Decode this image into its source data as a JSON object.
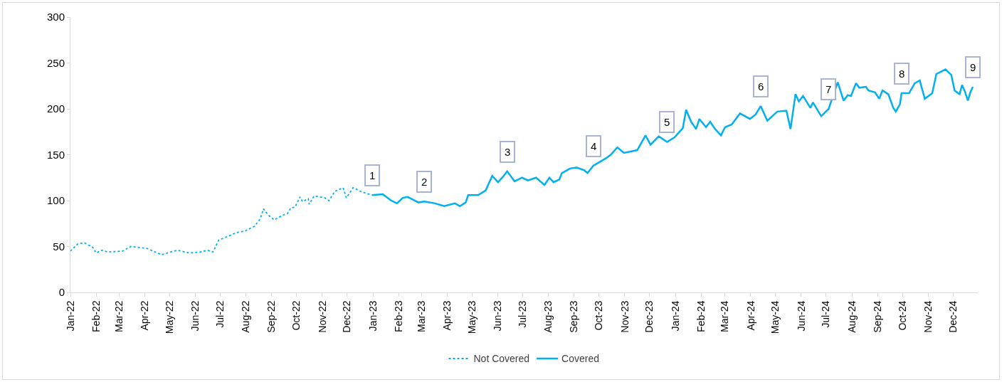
{
  "chart_data": {
    "type": "line",
    "legend": "bottom",
    "grid": false,
    "marker": "none",
    "xlim": [
      "2022-01-01",
      "2024-12-31"
    ],
    "ylim": [
      0,
      300
    ],
    "yticks": [
      0,
      50,
      100,
      150,
      200,
      250,
      300
    ],
    "xticks": [
      {
        "value": "2022-01",
        "label": "Jan-22"
      },
      {
        "value": "2022-02",
        "label": "Feb-22"
      },
      {
        "value": "2022-03",
        "label": "Mar-22"
      },
      {
        "value": "2022-04",
        "label": "Apr-22"
      },
      {
        "value": "2022-05",
        "label": "May-22"
      },
      {
        "value": "2022-06",
        "label": "Jun-22"
      },
      {
        "value": "2022-07",
        "label": "Jul-22"
      },
      {
        "value": "2022-08",
        "label": "Aug-22"
      },
      {
        "value": "2022-09",
        "label": "Sep-22"
      },
      {
        "value": "2022-10",
        "label": "Oct-22"
      },
      {
        "value": "2022-11",
        "label": "Nov-22"
      },
      {
        "value": "2022-12",
        "label": "Dec-22"
      },
      {
        "value": "2023-01",
        "label": "Jan-23"
      },
      {
        "value": "2023-02",
        "label": "Feb-23"
      },
      {
        "value": "2023-03",
        "label": "Mar-23"
      },
      {
        "value": "2023-04",
        "label": "Apr-23"
      },
      {
        "value": "2023-05",
        "label": "May-23"
      },
      {
        "value": "2023-06",
        "label": "Jun-23"
      },
      {
        "value": "2023-07",
        "label": "Jul-23"
      },
      {
        "value": "2023-08",
        "label": "Aug-23"
      },
      {
        "value": "2023-09",
        "label": "Sep-23"
      },
      {
        "value": "2023-10",
        "label": "Oct-23"
      },
      {
        "value": "2023-11",
        "label": "Nov-23"
      },
      {
        "value": "2023-12",
        "label": "Dec-23"
      },
      {
        "value": "2024-01",
        "label": "Jan-24"
      },
      {
        "value": "2024-02",
        "label": "Feb-24"
      },
      {
        "value": "2024-03",
        "label": "Mar-24"
      },
      {
        "value": "2024-04",
        "label": "Apr-24"
      },
      {
        "value": "2024-05",
        "label": "May-24"
      },
      {
        "value": "2024-06",
        "label": "Jun-24"
      },
      {
        "value": "2024-07",
        "label": "Jul-24"
      },
      {
        "value": "2024-08",
        "label": "Aug-24"
      },
      {
        "value": "2024-09",
        "label": "Sep-24"
      },
      {
        "value": "2024-10",
        "label": "Oct-24"
      },
      {
        "value": "2024-11",
        "label": "Nov-24"
      },
      {
        "value": "2024-12",
        "label": "Dec-24"
      }
    ],
    "series": [
      {
        "name": "Not Covered",
        "color": "#00b0f0",
        "line_style": "dotted",
        "x": [
          "2022-01-01",
          "2022-01-10",
          "2022-01-18",
          "2022-01-28",
          "2022-02-01",
          "2022-02-08",
          "2022-02-15",
          "2022-03-05",
          "2022-03-15",
          "2022-04-03",
          "2022-04-21",
          "2022-04-28",
          "2022-05-10",
          "2022-05-24",
          "2022-06-07",
          "2022-06-15",
          "2022-06-22",
          "2022-06-29",
          "2022-07-10",
          "2022-07-20",
          "2022-07-31",
          "2022-08-11",
          "2022-08-18",
          "2022-08-22",
          "2022-08-28",
          "2022-09-04",
          "2022-09-14",
          "2022-09-20",
          "2022-09-24",
          "2022-09-29",
          "2022-10-05",
          "2022-10-08",
          "2022-10-15",
          "2022-10-16",
          "2022-10-22",
          "2022-11-04",
          "2022-11-09",
          "2022-11-16",
          "2022-11-26",
          "2022-11-30",
          "2022-12-08",
          "2022-12-20",
          "2022-12-31"
        ],
        "values": [
          45,
          53,
          54,
          49,
          43,
          46,
          44,
          45,
          50,
          48,
          41,
          43,
          46,
          43,
          44,
          46,
          44,
          57,
          61,
          65,
          67,
          72,
          80,
          91,
          84,
          79,
          84,
          86,
          92,
          93,
          104,
          99,
          102,
          96,
          105,
          103,
          100,
          110,
          114,
          103,
          114,
          109,
          106
        ]
      },
      {
        "name": "Covered",
        "color": "#00b0f0",
        "line_style": "solid",
        "x": [
          "2022-12-31",
          "2023-01-13",
          "2023-01-23",
          "2023-01-30",
          "2023-02-06",
          "2023-02-12",
          "2023-02-25",
          "2023-03-04",
          "2023-03-17",
          "2023-03-28",
          "2023-04-10",
          "2023-04-16",
          "2023-04-23",
          "2023-04-26",
          "2023-05-08",
          "2023-05-17",
          "2023-05-25",
          "2023-06-01",
          "2023-06-07",
          "2023-06-12",
          "2023-06-21",
          "2023-06-30",
          "2023-07-07",
          "2023-07-17",
          "2023-07-27",
          "2023-08-02",
          "2023-08-07",
          "2023-08-14",
          "2023-08-17",
          "2023-08-27",
          "2023-09-04",
          "2023-09-13",
          "2023-09-17",
          "2023-09-24",
          "2023-10-09",
          "2023-10-15",
          "2023-10-23",
          "2023-10-31",
          "2023-11-16",
          "2023-11-26",
          "2023-12-02",
          "2023-12-12",
          "2023-12-22",
          "2023-12-31",
          "2024-01-10",
          "2024-01-14",
          "2024-01-20",
          "2024-01-26",
          "2024-01-30",
          "2024-02-07",
          "2024-02-12",
          "2024-02-18",
          "2024-02-25",
          "2024-03-01",
          "2024-03-09",
          "2024-03-19",
          "2024-03-31",
          "2024-04-07",
          "2024-04-13",
          "2024-04-21",
          "2024-05-03",
          "2024-05-14",
          "2024-05-19",
          "2024-05-25",
          "2024-05-29",
          "2024-06-03",
          "2024-06-12",
          "2024-06-15",
          "2024-06-25",
          "2024-07-04",
          "2024-07-15",
          "2024-07-22",
          "2024-07-27",
          "2024-07-31",
          "2024-08-06",
          "2024-08-10",
          "2024-08-18",
          "2024-08-21",
          "2024-08-29",
          "2024-09-03",
          "2024-09-07",
          "2024-09-14",
          "2024-09-20",
          "2024-09-23",
          "2024-09-28",
          "2024-09-30",
          "2024-10-09",
          "2024-10-16",
          "2024-10-22",
          "2024-10-24",
          "2024-10-28",
          "2024-11-06",
          "2024-11-11",
          "2024-11-22",
          "2024-11-29",
          "2024-12-03",
          "2024-12-09",
          "2024-12-12",
          "2024-12-15",
          "2024-12-19",
          "2024-12-22",
          "2024-12-25"
        ],
        "values": [
          106,
          107,
          100,
          97,
          103,
          104,
          98,
          99,
          97,
          94,
          97,
          94,
          98,
          106,
          106,
          111,
          127,
          120,
          126,
          132,
          121,
          125,
          122,
          125,
          117,
          125,
          120,
          123,
          130,
          135,
          136,
          133,
          130,
          138,
          146,
          150,
          158,
          152,
          155,
          171,
          161,
          170,
          164,
          169,
          179,
          199,
          186,
          178,
          189,
          180,
          186,
          178,
          171,
          180,
          183,
          195,
          189,
          194,
          203,
          187,
          197,
          198,
          178,
          216,
          208,
          214,
          201,
          207,
          192,
          200,
          229,
          209,
          215,
          214,
          228,
          223,
          224,
          220,
          218,
          211,
          220,
          216,
          201,
          197,
          205,
          217,
          217,
          228,
          231,
          224,
          211,
          217,
          238,
          243,
          237,
          220,
          216,
          226,
          220,
          209,
          218,
          224
        ]
      }
    ],
    "annotations": [
      {
        "text": "1",
        "x": "2022-12-31",
        "y": 106
      },
      {
        "text": "2",
        "x": "2023-03-04",
        "y": 99
      },
      {
        "text": "3",
        "x": "2023-06-12",
        "y": 132
      },
      {
        "text": "4",
        "x": "2023-09-24",
        "y": 138
      },
      {
        "text": "5",
        "x": "2023-12-22",
        "y": 164
      },
      {
        "text": "6",
        "x": "2024-04-13",
        "y": 203
      },
      {
        "text": "7",
        "x": "2024-07-04",
        "y": 200
      },
      {
        "text": "8",
        "x": "2024-09-30",
        "y": 217
      },
      {
        "text": "9",
        "x": "2024-12-25",
        "y": 224
      }
    ]
  }
}
